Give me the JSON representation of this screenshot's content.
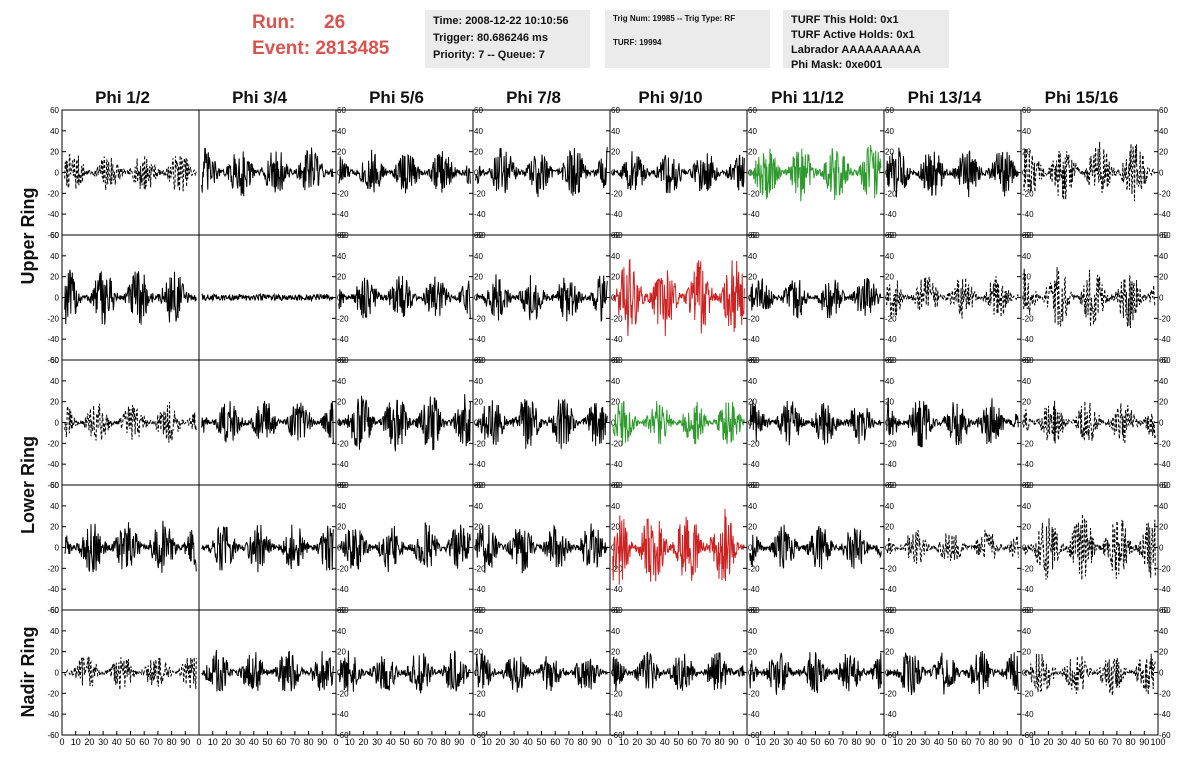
{
  "header": {
    "run_label": "Run:",
    "run_value": "26",
    "event_label": "Event:",
    "event_value": "2813485",
    "time": "Time: 2008-12-22 10:10:56",
    "trigger": "Trigger: 80.686246 ms",
    "priority": "Priority: 7 -- Queue: 7",
    "trig_num": "Trig Num: 19985 -- Trig Type: RF",
    "turf": "TURF: 19994",
    "turf_this_hold": "TURF This Hold: 0x1",
    "turf_active_holds": "TURF Active Holds: 0x1",
    "labrador": "Labrador AAAAAAAAAA",
    "phi_mask": "Phi Mask: 0xe001"
  },
  "columns": [
    "Phi 1/2",
    "Phi 3/4",
    "Phi 5/6",
    "Phi 7/8",
    "Phi 9/10",
    "Phi 11/12",
    "Phi 13/14",
    "Phi 15/16"
  ],
  "rings": [
    "Upper Ring",
    "Lower Ring",
    "Nadir Ring"
  ],
  "chart_data": {
    "type": "line",
    "layout": "grid of 5 rows x 8 columns of waveform panels",
    "xlim": [
      0,
      100
    ],
    "ylim": [
      -60,
      60
    ],
    "x_ticks": [
      0,
      10,
      20,
      30,
      40,
      50,
      60,
      70,
      80,
      90,
      100
    ],
    "y_ticks": [
      -60,
      -40,
      -20,
      0,
      20,
      40,
      60
    ],
    "colors": {
      "default": "#000000",
      "triggered": "#2e9a2e",
      "max": "#cc2222"
    },
    "panels": [
      [
        "dashed",
        "solid",
        "solid",
        "solid",
        "solid",
        "green",
        "solid",
        "dashed"
      ],
      [
        "solid",
        "flat",
        "solid",
        "solid",
        "red",
        "solid",
        "dashed",
        "dashed"
      ],
      [
        "dashed",
        "solid",
        "solid",
        "solid",
        "green",
        "solid",
        "solid",
        "dashed"
      ],
      [
        "solid",
        "solid",
        "solid",
        "solid",
        "red",
        "solid",
        "dashed",
        "dashed"
      ],
      [
        "dashed",
        "solid",
        "solid",
        "solid",
        "solid",
        "solid",
        "solid",
        "dashed"
      ]
    ],
    "amplitudes": [
      [
        20,
        25,
        22,
        25,
        22,
        28,
        25,
        30
      ],
      [
        28,
        3,
        22,
        24,
        38,
        22,
        22,
        30
      ],
      [
        20,
        22,
        28,
        26,
        22,
        22,
        25,
        22
      ],
      [
        26,
        24,
        25,
        25,
        38,
        22,
        18,
        32
      ],
      [
        18,
        22,
        22,
        20,
        20,
        22,
        22,
        22
      ]
    ]
  }
}
